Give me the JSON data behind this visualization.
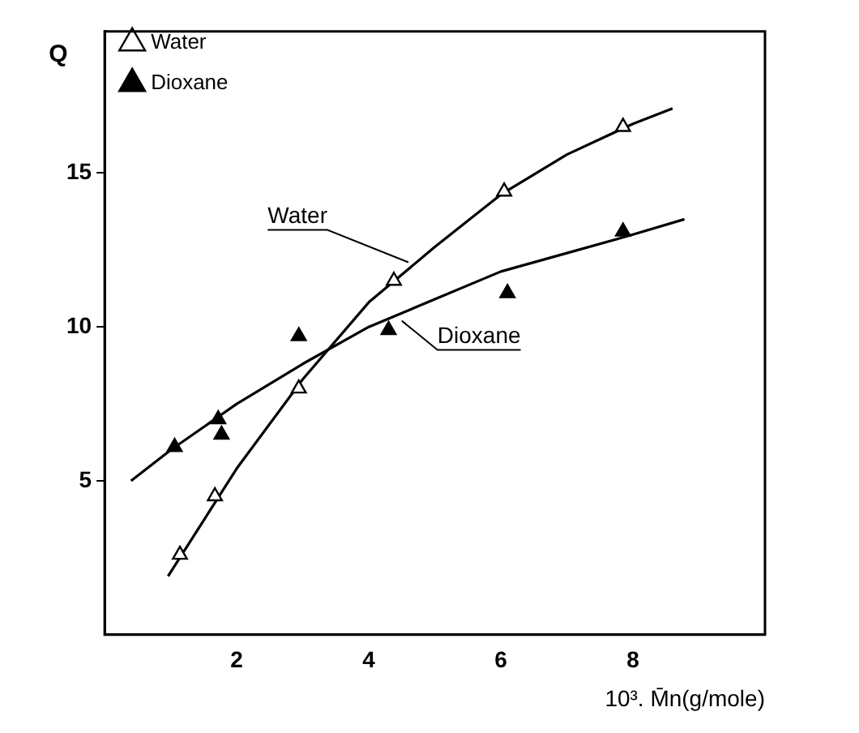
{
  "chart_data": {
    "type": "scatter",
    "ylabel": "Q",
    "xlabel": "10³. M̄n(g/mole)",
    "xlim": [
      0,
      10
    ],
    "ylim": [
      0,
      19.6
    ],
    "xticks": [
      2,
      4,
      6,
      8
    ],
    "yticks": [
      5,
      10,
      15
    ],
    "grid": false,
    "legend": "top left",
    "marker": "triangle",
    "series": [
      {
        "name": "Water",
        "color": "#000000",
        "x": [
          1.14,
          1.67,
          2.94,
          4.38,
          6.05,
          7.85
        ],
        "values": [
          2.6,
          4.5,
          8.0,
          11.5,
          14.4,
          16.5
        ]
      },
      {
        "name": "Dioxane",
        "color": "#000000",
        "x": [
          1.06,
          1.72,
          1.77,
          2.94,
          4.3,
          6.1,
          7.85
        ],
        "values": [
          6.1,
          7.0,
          6.5,
          9.7,
          9.9,
          11.1,
          13.1
        ]
      },
      {
        "type": "line",
        "marker": "none",
        "color": "#000000",
        "x": [
          0.96,
          2,
          3,
          4,
          5,
          6,
          7,
          8,
          8.6
        ],
        "values": [
          1.9,
          5.4,
          8.3,
          10.8,
          12.6,
          14.3,
          15.6,
          16.6,
          17.1
        ]
      },
      {
        "type": "line",
        "marker": "none",
        "color": "#000000",
        "x": [
          0.4,
          1,
          2,
          3,
          4,
          5,
          6,
          7,
          8,
          8.78
        ],
        "values": [
          5.0,
          6.0,
          7.5,
          8.8,
          10.0,
          10.9,
          11.8,
          12.4,
          13.0,
          13.5
        ]
      }
    ],
    "annotations": [
      {
        "text": "Water",
        "x": 4.6,
        "y": 12.1
      },
      {
        "text": "Dioxane",
        "x": 4.5,
        "y": 10.2
      }
    ]
  }
}
